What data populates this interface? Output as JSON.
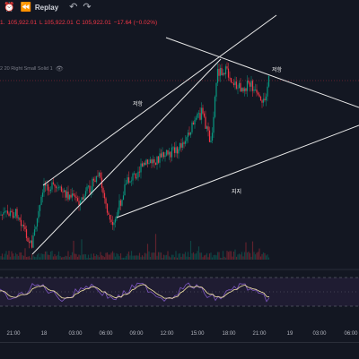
{
  "toolbar": {
    "alert_icon": "alarm-clock-icon",
    "replay_icon": "rewind-icon",
    "replay_label": "Replay",
    "undo_icon": "undo-arrow-icon",
    "redo_icon": "redo-arrow-icon"
  },
  "ohlc": {
    "open": "1.",
    "high": "105,922.01",
    "low": "L 105,922.01",
    "close": "C 105,922.01",
    "change": "−17.64 (−0.02%)"
  },
  "indicator_legend": {
    "text": "2 20 Right Small Solid 1",
    "icon": "eye-icon"
  },
  "annotations": {
    "resistance_upper": "저항",
    "resistance_right": "저항",
    "support": "지지"
  },
  "time_axis": [
    "21:00",
    "18",
    "03:00",
    "06:00",
    "09:00",
    "12:00",
    "15:00",
    "18:00",
    "21:00",
    "19",
    "03:00",
    "06:00"
  ],
  "colors": {
    "background": "#131722",
    "up": "#089981",
    "down": "#f23645",
    "trendline": "#e8e8e8",
    "oscillator": "#7e57c2",
    "oscillator_signal": "#f7e7a7",
    "oscillator_band": "#2a2140"
  }
}
